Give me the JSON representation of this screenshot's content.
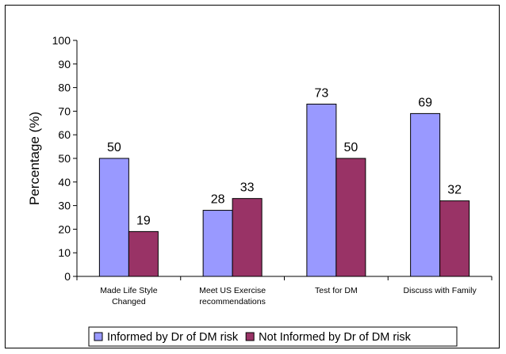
{
  "chart_data": {
    "type": "bar",
    "ylabel": "Percentage (%)",
    "xlabel": "",
    "ylim": [
      0,
      100
    ],
    "yticks": [
      "0",
      "10",
      "20",
      "30",
      "40",
      "50",
      "60",
      "70",
      "80",
      "90",
      "100"
    ],
    "categories": [
      [
        "Made Life Style",
        "Changed"
      ],
      [
        "Meet US Exercise",
        "recommendations"
      ],
      [
        "Test for DM"
      ],
      [
        "Discuss with Family"
      ]
    ],
    "series": [
      {
        "name": "Informed by Dr of DM risk",
        "color": "#9999ff",
        "values": [
          50,
          28,
          73,
          69
        ]
      },
      {
        "name": "Not Informed by Dr of DM risk",
        "color": "#993366",
        "values": [
          19,
          33,
          50,
          32
        ]
      }
    ],
    "grid": false,
    "legend": "bottom"
  }
}
